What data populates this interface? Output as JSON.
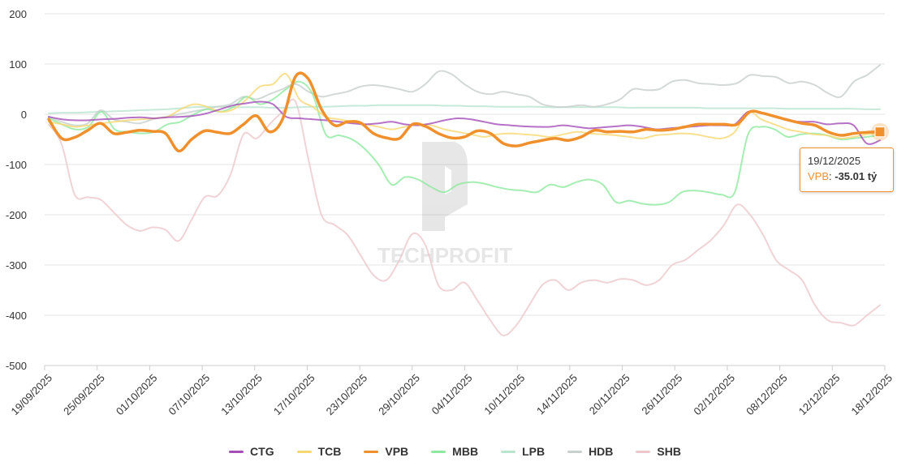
{
  "chart_data": {
    "type": "line",
    "title": "",
    "xlabel": "",
    "ylabel": "",
    "ylim": [
      -500,
      200
    ],
    "yticks": [
      200,
      100,
      0,
      -100,
      -200,
      -300,
      -400,
      -500
    ],
    "grid": true,
    "legend_position": "bottom",
    "x_tick_labels": [
      "19/09/2025",
      "25/09/2025",
      "01/10/2025",
      "07/10/2025",
      "13/10/2025",
      "17/10/2025",
      "23/10/2025",
      "29/10/2025",
      "04/11/2025",
      "10/11/2025",
      "14/11/2025",
      "20/11/2025",
      "26/11/2025",
      "02/12/2025",
      "08/12/2025",
      "12/12/2025",
      "18/12/2025"
    ],
    "series": [
      {
        "name": "CTG",
        "color": "#a44fb8",
        "values": [
          -5,
          -10,
          -12,
          -12,
          -10,
          -9,
          -7,
          -6,
          -8,
          -6,
          -5,
          -3,
          2,
          10,
          18,
          22,
          25,
          20,
          -5,
          -8,
          -10,
          -12,
          -15,
          -18,
          -20,
          -18,
          -15,
          -20,
          -22,
          -18,
          -12,
          -8,
          -10,
          -15,
          -20,
          -22,
          -24,
          -25,
          -25,
          -22,
          -25,
          -28,
          -26,
          -24,
          -22,
          -25,
          -30,
          -28,
          -26,
          -24,
          -22,
          -22,
          -20,
          5,
          2,
          -5,
          -12,
          -15,
          -15,
          -20,
          -18,
          -22,
          -58,
          -52
        ]
      },
      {
        "name": "TCB",
        "color": "#f6d873",
        "values": [
          -15,
          -20,
          -25,
          -22,
          -18,
          -15,
          -12,
          -10,
          -8,
          -5,
          10,
          20,
          15,
          5,
          10,
          30,
          55,
          60,
          80,
          30,
          15,
          -5,
          -10,
          -15,
          -20,
          -25,
          -30,
          -25,
          -20,
          -22,
          -30,
          -35,
          -40,
          -45,
          -40,
          -38,
          -40,
          -42,
          -45,
          -40,
          -35,
          -38,
          -40,
          -42,
          -45,
          -48,
          -42,
          -40,
          -38,
          -40,
          -45,
          -48,
          -35,
          5,
          -10,
          -20,
          -30,
          -35,
          -40,
          -42,
          -48,
          -45,
          -40,
          -38
        ]
      },
      {
        "name": "VPB",
        "color": "#f0902c",
        "values": [
          -10,
          -48,
          -46,
          -32,
          -18,
          -38,
          -36,
          -32,
          -34,
          -38,
          -73,
          -50,
          -33,
          -36,
          -38,
          -20,
          -3,
          -35,
          -10,
          75,
          70,
          10,
          -22,
          -15,
          -17,
          -38,
          -47,
          -48,
          -20,
          -24,
          -38,
          -47,
          -45,
          -33,
          -38,
          -58,
          -63,
          -57,
          -52,
          -48,
          -52,
          -45,
          -32,
          -35,
          -34,
          -35,
          -30,
          -32,
          -30,
          -25,
          -20,
          -20,
          -20,
          -20,
          5,
          2,
          -5,
          -12,
          -18,
          -22,
          -35,
          -42,
          -38,
          -36,
          -35.01
        ]
      },
      {
        "name": "MBB",
        "color": "#8ee8a0",
        "values": [
          -8,
          -20,
          -30,
          -25,
          5,
          -30,
          -35,
          -38,
          -35,
          -20,
          -15,
          0,
          10,
          5,
          15,
          35,
          20,
          30,
          50,
          65,
          40,
          -40,
          -42,
          -50,
          -70,
          -100,
          -140,
          -125,
          -130,
          -145,
          -155,
          -140,
          -135,
          -138,
          -145,
          -150,
          -152,
          -155,
          -140,
          -145,
          -135,
          -130,
          -140,
          -175,
          -172,
          -178,
          -180,
          -175,
          -155,
          -152,
          -155,
          -160,
          -155,
          -40,
          -25,
          -30,
          -45,
          -40,
          -38,
          -42,
          -50,
          -48,
          -45,
          -42
        ]
      },
      {
        "name": "LPB",
        "color": "#b9e4d0",
        "values": [
          2,
          3,
          3,
          4,
          5,
          6,
          7,
          8,
          9,
          10,
          12,
          14,
          15,
          15,
          14,
          14,
          14,
          13,
          13,
          14,
          15,
          15,
          16,
          17,
          17,
          18,
          18,
          18,
          18,
          18,
          17,
          17,
          16,
          16,
          15,
          15,
          15,
          15,
          14,
          14,
          14,
          14,
          14,
          14,
          13,
          13,
          13,
          13,
          13,
          13,
          12,
          12,
          12,
          12,
          12,
          12,
          11,
          11,
          11,
          11,
          11,
          11,
          10,
          10
        ]
      },
      {
        "name": "HDB",
        "color": "#c8d0cc",
        "values": [
          -5,
          -15,
          -22,
          -18,
          8,
          -10,
          -15,
          -18,
          -10,
          -5,
          0,
          5,
          10,
          15,
          20,
          35,
          30,
          40,
          50,
          60,
          45,
          35,
          40,
          45,
          55,
          58,
          55,
          50,
          45,
          60,
          85,
          80,
          60,
          45,
          40,
          45,
          40,
          35,
          20,
          15,
          15,
          18,
          15,
          20,
          30,
          50,
          48,
          50,
          65,
          68,
          62,
          60,
          58,
          62,
          78,
          76,
          74,
          62,
          65,
          58,
          42,
          35,
          65,
          78,
          98
        ]
      },
      {
        "name": "SHB",
        "color": "#ecc8cc",
        "values": [
          -20,
          -60,
          -160,
          -165,
          -170,
          -195,
          -220,
          -232,
          -225,
          -230,
          -252,
          -210,
          -165,
          -162,
          -120,
          -40,
          -48,
          -20,
          5,
          25,
          -90,
          -200,
          -220,
          -240,
          -280,
          -320,
          -330,
          -290,
          -238,
          -260,
          -340,
          -350,
          -335,
          -370,
          -410,
          -440,
          -420,
          -380,
          -340,
          -330,
          -350,
          -335,
          -330,
          -335,
          -328,
          -330,
          -340,
          -330,
          -300,
          -290,
          -270,
          -250,
          -220,
          -180,
          -200,
          -240,
          -290,
          -310,
          -330,
          -380,
          -410,
          -415,
          -420,
          -400,
          -380
        ]
      }
    ]
  },
  "tooltip": {
    "date": "19/12/2025",
    "series": "VPB",
    "separator": ": ",
    "value": "-35.01 tỷ"
  },
  "watermark": "TECHPROFIT"
}
